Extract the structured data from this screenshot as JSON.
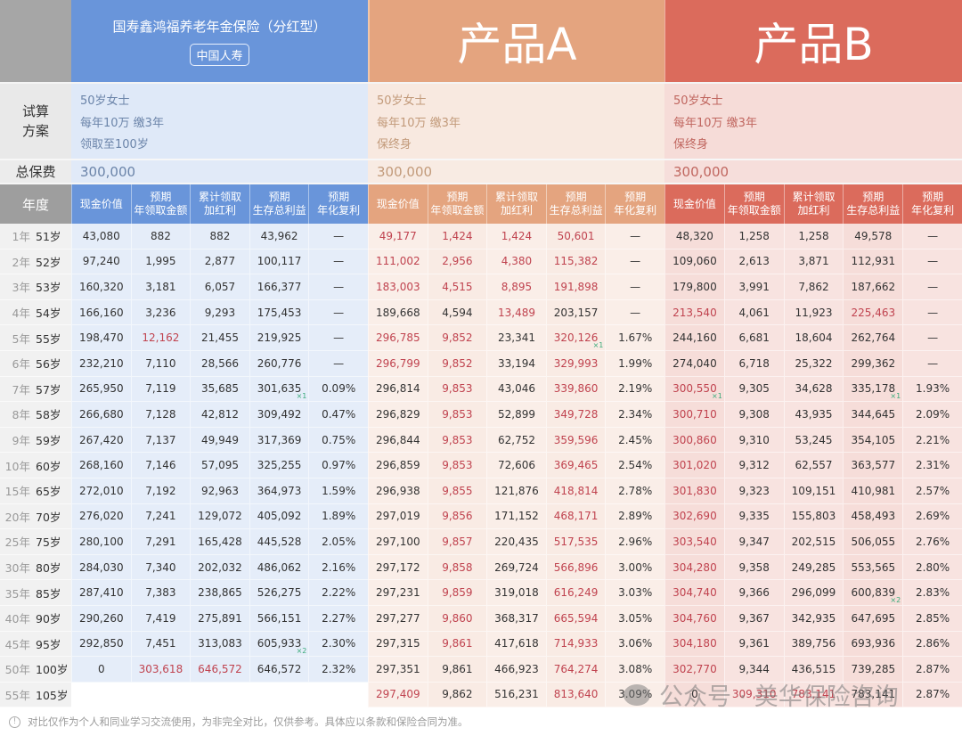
{
  "header": {
    "guoshou_title": "国寿鑫鸿福养老年金保险（分红型）",
    "guoshou_brand": "中国人寿",
    "product_a": "产品A",
    "product_b": "产品B"
  },
  "plan": {
    "label": "试算\n方案",
    "label_l1": "试算",
    "label_l2": "方案",
    "guoshou": [
      "50岁女士",
      "每年10万 缴3年",
      "领取至100岁"
    ],
    "product_a": [
      "50岁女士",
      "每年10万 缴3年",
      "保终身"
    ],
    "product_b": [
      "50岁女士",
      "每年10万 缴3年",
      "保终身"
    ]
  },
  "premium": {
    "label": "总保费",
    "guoshou": "300,000",
    "product_a": "300,000",
    "product_b": "300,000"
  },
  "columns": {
    "year_label": "年度",
    "sub": [
      "现金价值",
      "预期\n年领取金额",
      "累计领取\n加红利",
      "预期\n生存总利益",
      "预期\n年化复利"
    ]
  },
  "footer": {
    "note": "对比仅作为个人和同业学习交流使用，为非完全对比，仅供参考。具体应以条款和保险合同为准。",
    "watermark": "公众号 · 美华保险咨询"
  },
  "chart_data": {
    "type": "table",
    "title": "国寿鑫鸿福养老年金保险（分红型） vs 产品A vs 产品B",
    "column_headers": [
      "现金价值",
      "预期年领取金额",
      "累计领取加红利",
      "预期生存总利益",
      "预期年化复利"
    ],
    "rows": [
      {
        "year": "1年",
        "age": "51岁",
        "g": [
          "43,080",
          "882",
          "882",
          "43,962",
          "—"
        ],
        "a": [
          "49,177",
          "1,424",
          "1,424",
          "50,601",
          "—"
        ],
        "b": [
          "48,320",
          "1,258",
          "1,258",
          "49,578",
          "—"
        ]
      },
      {
        "year": "2年",
        "age": "52岁",
        "g": [
          "97,240",
          "1,995",
          "2,877",
          "100,117",
          "—"
        ],
        "a": [
          "111,002",
          "2,956",
          "4,380",
          "115,382",
          "—"
        ],
        "b": [
          "109,060",
          "2,613",
          "3,871",
          "112,931",
          "—"
        ]
      },
      {
        "year": "3年",
        "age": "53岁",
        "g": [
          "160,320",
          "3,181",
          "6,057",
          "166,377",
          "—"
        ],
        "a": [
          "183,003",
          "4,515",
          "8,895",
          "191,898",
          "—"
        ],
        "b": [
          "179,800",
          "3,991",
          "7,862",
          "187,662",
          "—"
        ]
      },
      {
        "year": "4年",
        "age": "54岁",
        "g": [
          "166,160",
          "3,236",
          "9,293",
          "175,453",
          "—"
        ],
        "a": [
          "189,668",
          "4,594",
          "13,489",
          "203,157",
          "—"
        ],
        "b": [
          "213,540",
          "4,061",
          "11,923",
          "225,463",
          "—"
        ]
      },
      {
        "year": "5年",
        "age": "55岁",
        "g": [
          "198,470",
          "12,162",
          "21,455",
          "219,925",
          "—"
        ],
        "a": [
          "296,785",
          "9,852",
          "23,341",
          "320,126",
          "1.67%"
        ],
        "b": [
          "244,160",
          "6,681",
          "18,604",
          "262,764",
          "—"
        ]
      },
      {
        "year": "6年",
        "age": "56岁",
        "g": [
          "232,210",
          "7,110",
          "28,566",
          "260,776",
          "—"
        ],
        "a": [
          "296,799",
          "9,852",
          "33,194",
          "329,993",
          "1.99%"
        ],
        "b": [
          "274,040",
          "6,718",
          "25,322",
          "299,362",
          "—"
        ]
      },
      {
        "year": "7年",
        "age": "57岁",
        "g": [
          "265,950",
          "7,119",
          "35,685",
          "301,635",
          "0.09%"
        ],
        "a": [
          "296,814",
          "9,853",
          "43,046",
          "339,860",
          "2.19%"
        ],
        "b": [
          "300,550",
          "9,305",
          "34,628",
          "335,178",
          "1.93%"
        ]
      },
      {
        "year": "8年",
        "age": "58岁",
        "g": [
          "266,680",
          "7,128",
          "42,812",
          "309,492",
          "0.47%"
        ],
        "a": [
          "296,829",
          "9,853",
          "52,899",
          "349,728",
          "2.34%"
        ],
        "b": [
          "300,710",
          "9,308",
          "43,935",
          "344,645",
          "2.09%"
        ]
      },
      {
        "year": "9年",
        "age": "59岁",
        "g": [
          "267,420",
          "7,137",
          "49,949",
          "317,369",
          "0.75%"
        ],
        "a": [
          "296,844",
          "9,853",
          "62,752",
          "359,596",
          "2.45%"
        ],
        "b": [
          "300,860",
          "9,310",
          "53,245",
          "354,105",
          "2.21%"
        ]
      },
      {
        "year": "10年",
        "age": "60岁",
        "g": [
          "268,160",
          "7,146",
          "57,095",
          "325,255",
          "0.97%"
        ],
        "a": [
          "296,859",
          "9,853",
          "72,606",
          "369,465",
          "2.54%"
        ],
        "b": [
          "301,020",
          "9,312",
          "62,557",
          "363,577",
          "2.31%"
        ]
      },
      {
        "year": "15年",
        "age": "65岁",
        "g": [
          "272,010",
          "7,192",
          "92,963",
          "364,973",
          "1.59%"
        ],
        "a": [
          "296,938",
          "9,855",
          "121,876",
          "418,814",
          "2.78%"
        ],
        "b": [
          "301,830",
          "9,323",
          "109,151",
          "410,981",
          "2.57%"
        ]
      },
      {
        "year": "20年",
        "age": "70岁",
        "g": [
          "276,020",
          "7,241",
          "129,072",
          "405,092",
          "1.89%"
        ],
        "a": [
          "297,019",
          "9,856",
          "171,152",
          "468,171",
          "2.89%"
        ],
        "b": [
          "302,690",
          "9,335",
          "155,803",
          "458,493",
          "2.69%"
        ]
      },
      {
        "year": "25年",
        "age": "75岁",
        "g": [
          "280,100",
          "7,291",
          "165,428",
          "445,528",
          "2.05%"
        ],
        "a": [
          "297,100",
          "9,857",
          "220,435",
          "517,535",
          "2.96%"
        ],
        "b": [
          "303,540",
          "9,347",
          "202,515",
          "506,055",
          "2.76%"
        ]
      },
      {
        "year": "30年",
        "age": "80岁",
        "g": [
          "284,030",
          "7,340",
          "202,032",
          "486,062",
          "2.16%"
        ],
        "a": [
          "297,172",
          "9,858",
          "269,724",
          "566,896",
          "3.00%"
        ],
        "b": [
          "304,280",
          "9,358",
          "249,285",
          "553,565",
          "2.80%"
        ]
      },
      {
        "year": "35年",
        "age": "85岁",
        "g": [
          "287,410",
          "7,383",
          "238,865",
          "526,275",
          "2.22%"
        ],
        "a": [
          "297,231",
          "9,859",
          "319,018",
          "616,249",
          "3.03%"
        ],
        "b": [
          "304,740",
          "9,366",
          "296,099",
          "600,839",
          "2.83%"
        ]
      },
      {
        "year": "40年",
        "age": "90岁",
        "g": [
          "290,260",
          "7,419",
          "275,891",
          "566,151",
          "2.27%"
        ],
        "a": [
          "297,277",
          "9,860",
          "368,317",
          "665,594",
          "3.05%"
        ],
        "b": [
          "304,760",
          "9,367",
          "342,935",
          "647,695",
          "2.85%"
        ]
      },
      {
        "year": "45年",
        "age": "95岁",
        "g": [
          "292,850",
          "7,451",
          "313,083",
          "605,933",
          "2.30%"
        ],
        "a": [
          "297,315",
          "9,861",
          "417,618",
          "714,933",
          "3.06%"
        ],
        "b": [
          "304,180",
          "9,361",
          "389,756",
          "693,936",
          "2.86%"
        ]
      },
      {
        "year": "50年",
        "age": "100岁",
        "g": [
          "0",
          "303,618",
          "646,572",
          "646,572",
          "2.32%"
        ],
        "a": [
          "297,351",
          "9,861",
          "466,923",
          "764,274",
          "3.08%"
        ],
        "b": [
          "302,770",
          "9,344",
          "436,515",
          "739,285",
          "2.87%"
        ]
      },
      {
        "year": "55年",
        "age": "105岁",
        "g": [
          "",
          "",
          "",
          "",
          ""
        ],
        "a": [
          "297,409",
          "9,862",
          "516,231",
          "813,640",
          "3.09%"
        ],
        "b": [
          "0",
          "309,310",
          "783,141",
          "783,141",
          "2.87%"
        ]
      }
    ],
    "red_cells": {
      "g": [
        [
          4,
          1
        ],
        [
          17,
          1
        ],
        [
          17,
          2
        ]
      ],
      "a": "rows 0-3: cols 0(red rows 0-2),1,2,3; rows 4+: cols 0(rows4-5),1,2,3",
      "b": "col 0 rows 3,6+; col 3 row 3"
    },
    "marks": [
      {
        "product": "g",
        "row": 6,
        "col": 3,
        "text": "×1"
      },
      {
        "product": "g",
        "row": 16,
        "col": 3,
        "text": "×2"
      },
      {
        "product": "a",
        "row": 4,
        "col": 3,
        "text": "×1"
      },
      {
        "product": "b",
        "row": 6,
        "col": 0,
        "text": "×1"
      },
      {
        "product": "b",
        "row": 6,
        "col": 3,
        "text": "×1"
      },
      {
        "product": "b",
        "row": 14,
        "col": 3,
        "text": "×2"
      }
    ]
  }
}
